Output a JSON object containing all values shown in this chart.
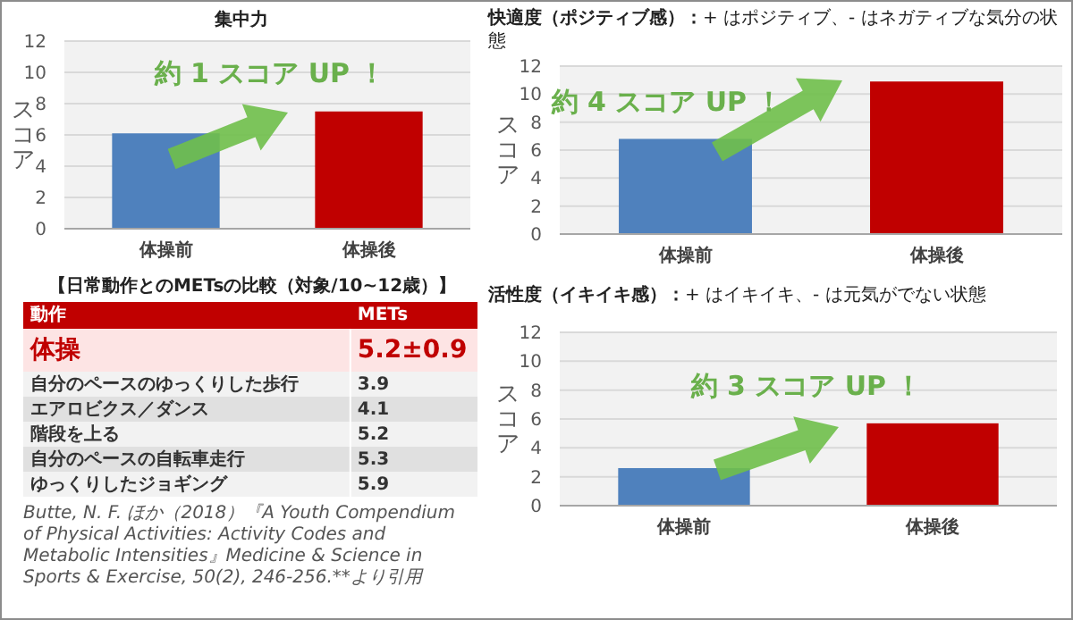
{
  "chart_data": [
    {
      "type": "bar",
      "title": "集中力",
      "ylabel": "スコア",
      "categories": [
        "体操前",
        "体操後"
      ],
      "values": [
        6.1,
        7.5
      ],
      "colors": [
        "#4f81bd",
        "#c00000"
      ],
      "ylim": [
        0,
        12
      ],
      "yticks": [
        0,
        2,
        4,
        6,
        8,
        10,
        12
      ],
      "grid": "y",
      "annotations": [
        "約 1 スコア UP ！"
      ]
    },
    {
      "type": "bar",
      "title": "**快適度（ポジティブ感）：**+ はポジティブ、- はネガティブな気分の状態",
      "ylabel": "スコア",
      "categories": [
        "体操前",
        "体操後"
      ],
      "values": [
        6.8,
        10.9
      ],
      "colors": [
        "#4f81bd",
        "#c00000"
      ],
      "ylim": [
        0,
        12
      ],
      "yticks": [
        0,
        2,
        4,
        6,
        8,
        10,
        12
      ],
      "grid": "y",
      "annotations": [
        "約 4 スコア UP ！"
      ]
    },
    {
      "type": "other",
      "title": "【日常動作とのMETsの比較（対象/10~12歳）】",
      "xlabel": "動作",
      "ylabel": "METs",
      "categories": [
        "体操",
        "自分のペースのゆっくりした歩行",
        "エアロビクス／ダンス",
        "階段を上る",
        "自分のペースの自転車走行",
        "ゆっくりしたジョギング"
      ],
      "value_labels": [
        "5.2±0.9",
        "3.9",
        "4.1",
        "5.2",
        "5.3",
        "5.9"
      ],
      "annotations": [
        "Butte, N. F. ほか（2018）『A Youth Compendium of Physical Activities: Activity Codes and Metabolic Intensities』Medicine & Science in Sports & Exercise, 50(2), 246-256.**より引用"
      ]
    },
    {
      "type": "bar",
      "title": "**活性度（イキイキ感）：**+ はイキイキ、- は元気がでない状態",
      "ylabel": "スコア",
      "categories": [
        "体操前",
        "体操後"
      ],
      "values": [
        2.6,
        5.7
      ],
      "colors": [
        "#4f81bd",
        "#c00000"
      ],
      "ylim": [
        0,
        12
      ],
      "yticks": [
        0,
        2,
        4,
        6,
        8,
        10,
        12
      ],
      "grid": "y",
      "annotations": [
        "約 3 スコア UP ！"
      ]
    }
  ]
}
